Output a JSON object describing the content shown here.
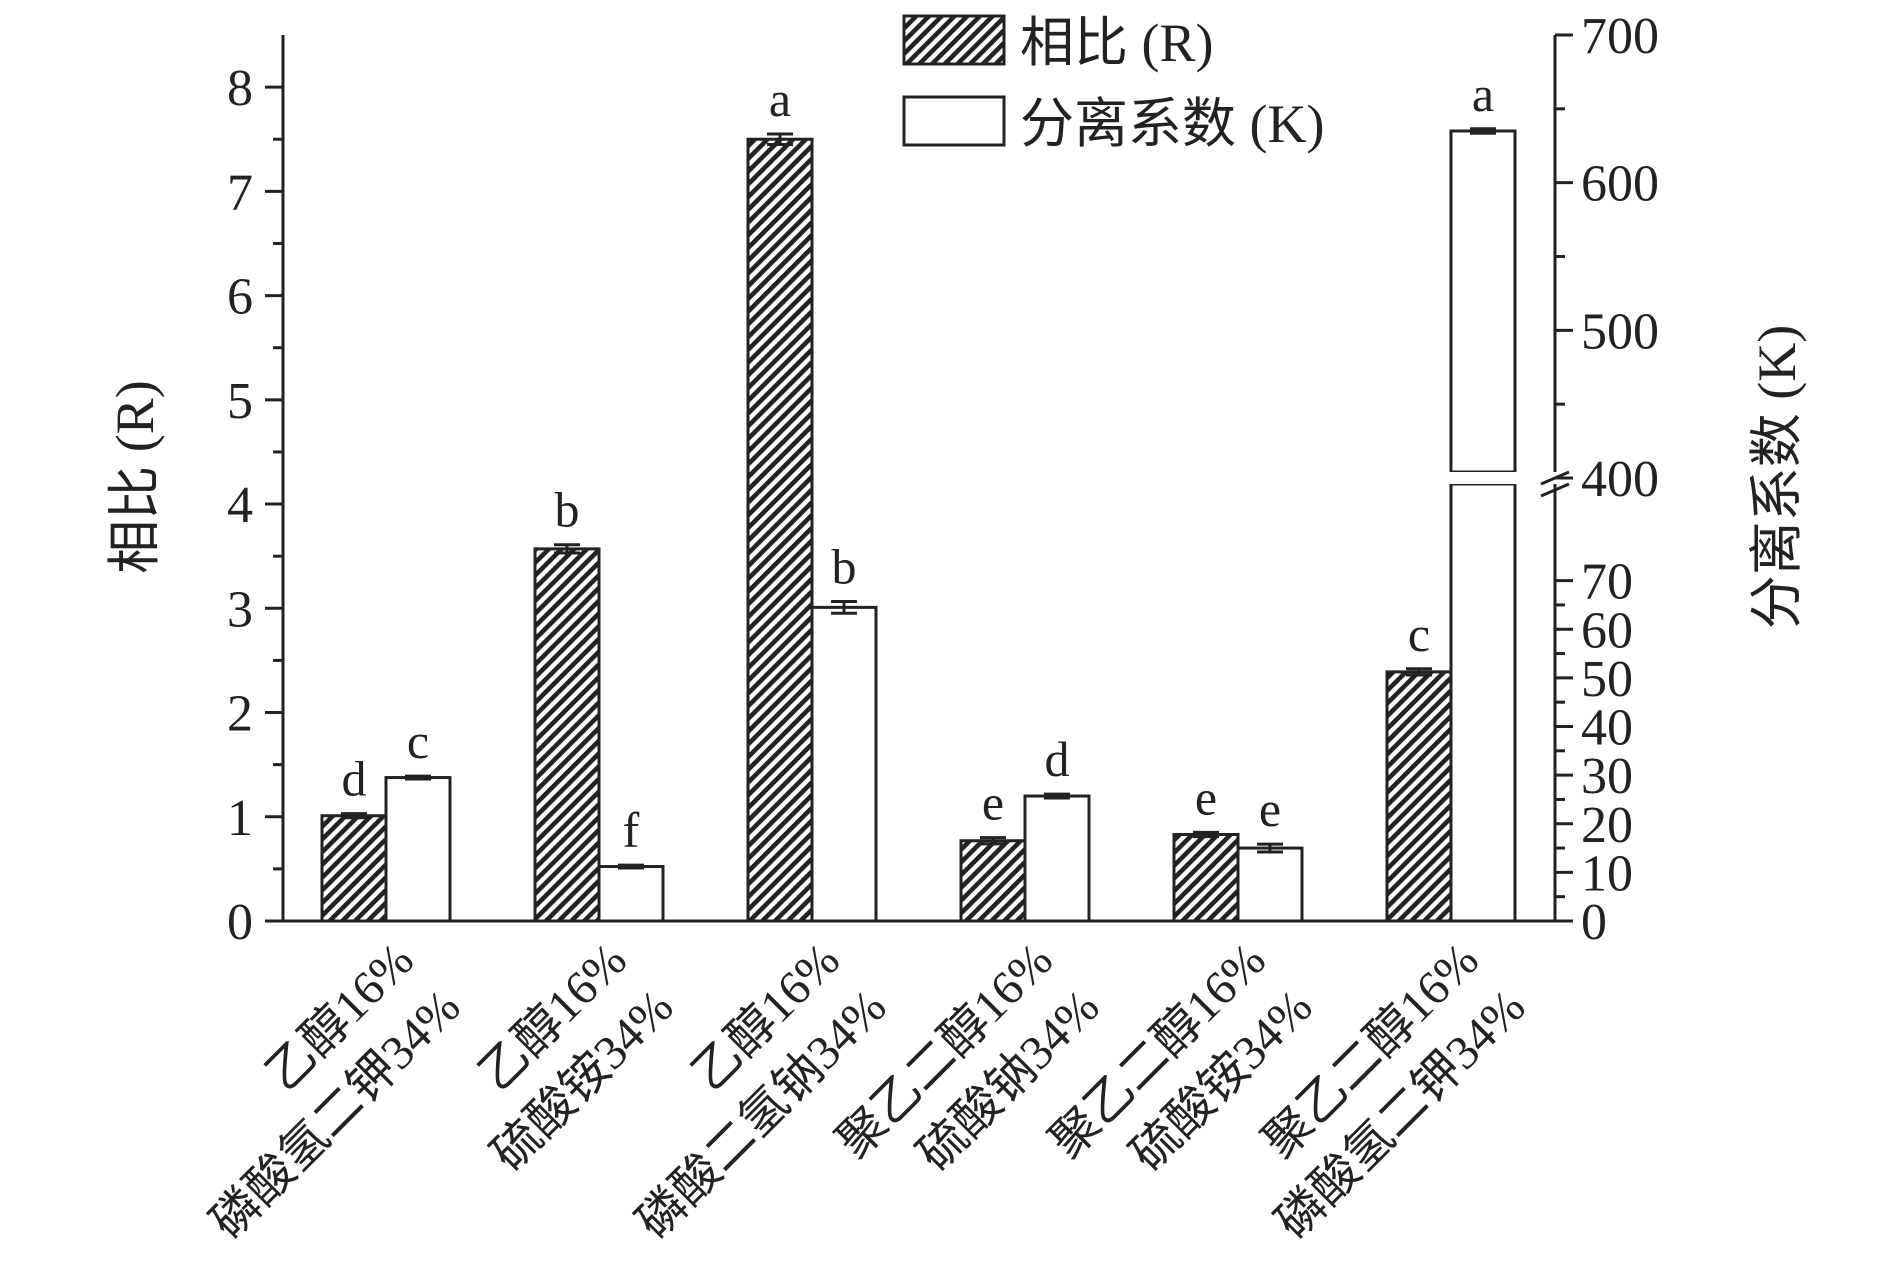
{
  "chart_data": {
    "type": "bar",
    "categories": [
      [
        "乙醇16%",
        "磷酸氢二钾34%"
      ],
      [
        "乙醇16%",
        "硫酸铵34%"
      ],
      [
        "乙醇16%",
        "磷酸二氢钠34%"
      ],
      [
        "聚乙二醇16%",
        "硫酸钠34%"
      ],
      [
        "聚乙二醇16%",
        "硫酸铵34%"
      ],
      [
        "聚乙二醇16%",
        "磷酸氢二钾34%"
      ]
    ],
    "series": [
      {
        "name": "相比 (R)",
        "axis": "left",
        "pattern": "hatched",
        "values": [
          1.01,
          3.57,
          7.5,
          0.77,
          0.83,
          2.39
        ],
        "errors": [
          0.02,
          0.04,
          0.05,
          0.03,
          0.02,
          0.03
        ],
        "significance": [
          "d",
          "b",
          "a",
          "e",
          "e",
          "c"
        ]
      },
      {
        "name": "分离系数 (K)",
        "axis": "right",
        "pattern": "open",
        "values": [
          29.5,
          11.2,
          64.5,
          25.7,
          15.0,
          635
        ],
        "errors": [
          0.3,
          0.3,
          1.2,
          0.4,
          0.8,
          1.5
        ],
        "significance": [
          "c",
          "f",
          "b",
          "d",
          "e",
          "a"
        ]
      }
    ],
    "y_left": {
      "label": "相比 (R)",
      "lim": [
        0,
        8.5
      ],
      "ticks": [
        0,
        1,
        2,
        3,
        4,
        5,
        6,
        7,
        8
      ]
    },
    "y_right": {
      "label": "分离系数 (K)",
      "broken": true,
      "lower_segment": {
        "lim": [
          0,
          80
        ],
        "ticks": [
          0,
          10,
          20,
          30,
          40,
          50,
          60,
          70
        ]
      },
      "upper_segment": {
        "lim": [
          400,
          700
        ],
        "ticks": [
          400,
          500,
          600,
          700
        ]
      }
    },
    "legend": {
      "position": "top-center"
    },
    "grid": false
  }
}
